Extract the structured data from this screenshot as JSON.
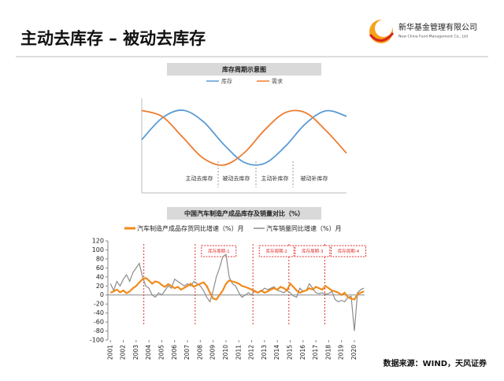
{
  "header": {
    "title": "主动去库存 – 被动去库存",
    "company_cn": "新华基金管理有限公司",
    "company_en": "New China Fund Management Co., Ltd"
  },
  "chart_data": [
    {
      "type": "line",
      "title": "库存周期示意图",
      "x": [
        0,
        0.1,
        0.2,
        0.3,
        0.4,
        0.5,
        0.6,
        0.7,
        0.8,
        0.9,
        1.0
      ],
      "series": [
        {
          "name": "库存",
          "color": "#5b9bd5",
          "values": [
            -0.07,
            0.72,
            1.0,
            0.59,
            -0.24,
            -0.89,
            -0.93,
            -0.32,
            0.51,
            0.98,
            0.78
          ]
        },
        {
          "name": "需求",
          "color": "#ed7d31",
          "values": [
            0.99,
            0.77,
            0.02,
            -0.74,
            -0.99,
            -0.55,
            0.28,
            0.91,
            0.91,
            0.26,
            -0.56
          ]
        }
      ],
      "phases": [
        "主动去库存",
        "被动去库存",
        "主动补库存",
        "被动补库存"
      ]
    },
    {
      "type": "line",
      "title": "中国汽车制造产成品库存及销量对比（%）",
      "x": [
        2001,
        2001.25,
        2001.5,
        2001.75,
        2002,
        2002.25,
        2002.5,
        2002.75,
        2003,
        2003.25,
        2003.5,
        2003.75,
        2004,
        2004.25,
        2004.5,
        2004.75,
        2005,
        2005.25,
        2005.5,
        2005.75,
        2006,
        2006.25,
        2006.5,
        2006.75,
        2007,
        2007.25,
        2007.5,
        2007.75,
        2008,
        2008.25,
        2008.5,
        2008.75,
        2009,
        2009.25,
        2009.5,
        2009.75,
        2010,
        2010.25,
        2010.5,
        2010.75,
        2011,
        2011.25,
        2011.5,
        2011.75,
        2012,
        2012.25,
        2012.5,
        2012.75,
        2013,
        2013.25,
        2013.5,
        2013.75,
        2014,
        2014.25,
        2014.5,
        2014.75,
        2015,
        2015.25,
        2015.5,
        2015.75,
        2016,
        2016.25,
        2016.5,
        2016.75,
        2017,
        2017.25,
        2017.5,
        2017.75,
        2018,
        2018.25,
        2018.5,
        2018.75,
        2019,
        2019.25,
        2019.5,
        2019.75,
        2020,
        2020.25,
        2020.5,
        2020.75
      ],
      "series": [
        {
          "name": "汽车制造产成品存货同比增速（%）月",
          "color": "#f08a1c",
          "values": [
            5,
            8,
            12,
            6,
            10,
            4,
            8,
            15,
            20,
            28,
            35,
            38,
            32,
            25,
            30,
            28,
            22,
            18,
            24,
            20,
            15,
            18,
            12,
            16,
            20,
            25,
            18,
            22,
            25,
            28,
            20,
            5,
            -8,
            -10,
            0,
            10,
            25,
            32,
            30,
            28,
            25,
            20,
            18,
            15,
            12,
            8,
            5,
            10,
            5,
            8,
            12,
            15,
            12,
            18,
            15,
            10,
            25,
            18,
            10,
            5,
            8,
            10,
            15,
            12,
            18,
            15,
            12,
            20,
            15,
            10,
            8,
            5,
            0,
            5,
            -5,
            -8,
            -10,
            2,
            5,
            8
          ]
        },
        {
          "name": "汽车销量同比增速（%）月",
          "color": "#8c8c8c",
          "values": [
            25,
            10,
            30,
            20,
            35,
            45,
            30,
            50,
            60,
            70,
            40,
            20,
            15,
            0,
            -5,
            5,
            0,
            10,
            20,
            15,
            35,
            30,
            25,
            20,
            25,
            20,
            30,
            25,
            20,
            10,
            -5,
            -15,
            10,
            40,
            60,
            85,
            90,
            40,
            25,
            20,
            5,
            -5,
            0,
            5,
            0,
            10,
            5,
            8,
            15,
            12,
            15,
            18,
            10,
            8,
            5,
            10,
            5,
            -2,
            -5,
            15,
            8,
            10,
            25,
            15,
            5,
            3,
            5,
            2,
            3,
            8,
            -10,
            -15,
            -12,
            -15,
            -5,
            -3,
            -80,
            5,
            12,
            15
          ]
        }
      ],
      "xlim": [
        2000.8,
        2020.8
      ],
      "xticks": [
        2001,
        2002,
        2003,
        2004,
        2005,
        2006,
        2007,
        2008,
        2009,
        2010,
        2011,
        2012,
        2013,
        2014,
        2015,
        2016,
        2017,
        2018,
        2019,
        2020
      ],
      "ylim": [
        -100,
        120
      ],
      "yticks": [
        -100,
        -80,
        -60,
        -40,
        -20,
        0,
        20,
        40,
        60,
        80,
        100,
        120
      ],
      "boundaries": [
        2003.6,
        2007.6,
        2012.1,
        2014.9,
        2017.7
      ],
      "cycle_labels": [
        "库存周期-1",
        "库存周期-2",
        "库存周期-3",
        "库存周期-4"
      ]
    }
  ],
  "footer": {
    "source": "数据来源：WIND，天风证券"
  }
}
